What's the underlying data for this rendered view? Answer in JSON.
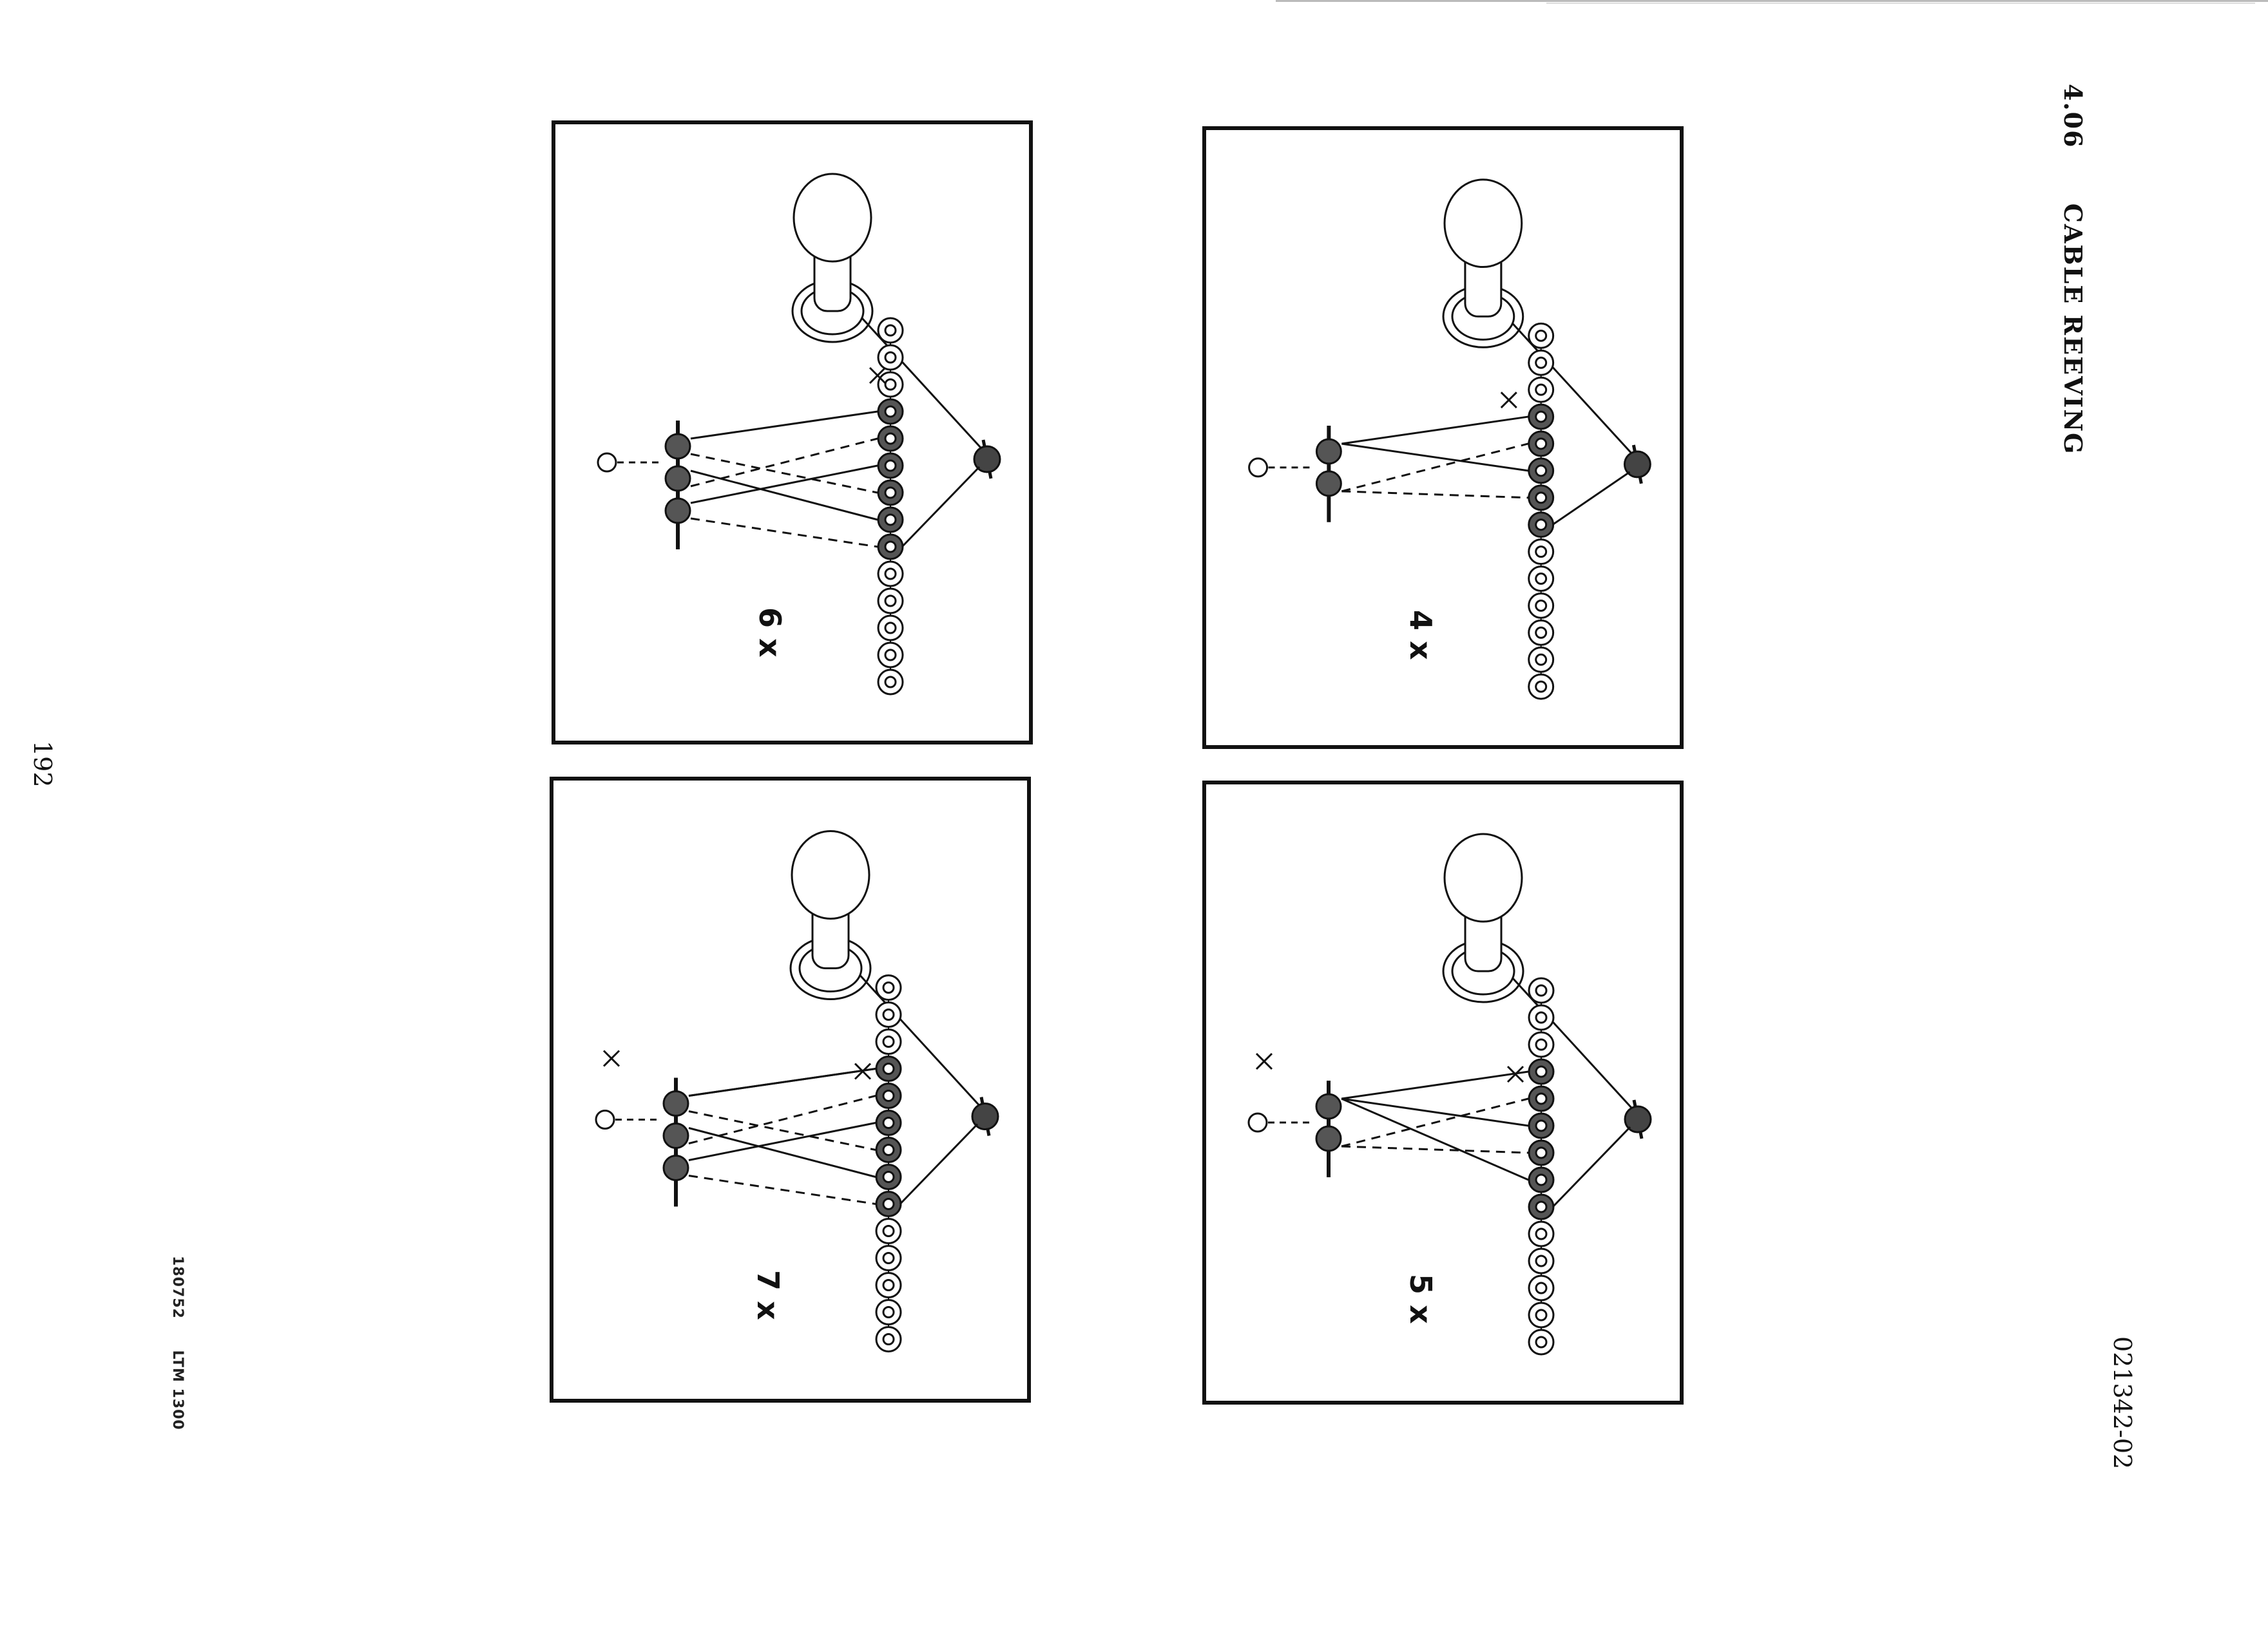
{
  "header": {
    "section_number": "4.06",
    "section_title": "CABLE REEVING"
  },
  "document_code": "021342-02",
  "page_number": "192",
  "footer": {
    "code": "180752",
    "model": "LTM 1300"
  },
  "diagrams": [
    {
      "label": "4 x",
      "reeving": 4
    },
    {
      "label": "5 x",
      "reeving": 5
    },
    {
      "label": "6 x",
      "reeving": 6
    },
    {
      "label": "7 x",
      "reeving": 7
    }
  ]
}
